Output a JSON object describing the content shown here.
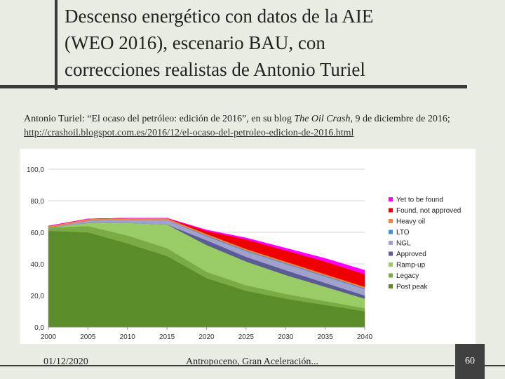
{
  "slide": {
    "title_lines": [
      "Descenso energético con datos de la AIE",
      "(WEO 2016), escenario BAU, con",
      "correcciones realistas de Antonio Turiel"
    ],
    "citation": {
      "author_prefix": "Antonio Turiel: “El ocaso del petróleo: edición de 2016”, en su blog ",
      "blog_name": "The Oil Crash,",
      "date_suffix": " 9 de diciembre de 2016; ",
      "url": "http://crashoil.blogspot.com.es/2016/12/el-ocaso-del-petroleo-edicion-de-2016.html"
    },
    "footer": {
      "date": "01/12/2020",
      "center": "Antropoceno, Gran Aceleración...",
      "page": "60"
    }
  },
  "chart_data": {
    "type": "area",
    "stacked": true,
    "title": "",
    "xlabel": "",
    "ylabel": "",
    "x": [
      2000,
      2005,
      2010,
      2015,
      2020,
      2025,
      2030,
      2035,
      2040
    ],
    "x_ticks": [
      "2000",
      "2005",
      "2010",
      "2015",
      "2020",
      "2025",
      "2030",
      "2035",
      "2040"
    ],
    "y_ticks": [
      "0,0",
      "20,0",
      "40,0",
      "60,0",
      "80,0",
      "100,0"
    ],
    "ylim": [
      0,
      100
    ],
    "legend_position": "right",
    "series": [
      {
        "name": "Post peak",
        "color": "#5b8c2a",
        "values": [
          61,
          60,
          53,
          45,
          31,
          23,
          18,
          14,
          10
        ]
      },
      {
        "name": "Legacy",
        "color": "#7aab45",
        "values": [
          2,
          4,
          5,
          5,
          4,
          3.5,
          3,
          2.5,
          2
        ]
      },
      {
        "name": "Ramp-up",
        "color": "#9acc66",
        "values": [
          0,
          2,
          8,
          15,
          17,
          15,
          12,
          9,
          6
        ]
      },
      {
        "name": "Approved",
        "color": "#5b5c96",
        "values": [
          0,
          0,
          0,
          0,
          3,
          3,
          3,
          2.5,
          2
        ]
      },
      {
        "name": "NGL",
        "color": "#a1a2cc",
        "values": [
          0,
          1.5,
          2,
          3,
          2.5,
          3.5,
          4,
          4,
          4
        ]
      },
      {
        "name": "LTO",
        "color": "#3f90d6",
        "values": [
          0,
          0,
          0,
          0,
          0.5,
          0.5,
          0.5,
          0.5,
          0.5
        ]
      },
      {
        "name": "Heavy oil",
        "color": "#f5813d",
        "values": [
          1,
          1,
          1,
          1,
          1,
          1,
          1,
          1,
          1
        ]
      },
      {
        "name": "Found, not approved",
        "color": "#ee0000",
        "values": [
          0,
          0,
          0,
          0,
          2,
          6,
          7,
          8,
          8
        ]
      },
      {
        "name": "Yet to be found",
        "color": "#ff00ff",
        "values": [
          0,
          0,
          0,
          0,
          0.5,
          1,
          1.5,
          2,
          2.5
        ]
      }
    ],
    "legend_order": [
      "Yet to be found",
      "Found, not approved",
      "Heavy oil",
      "LTO",
      "NGL",
      "Approved",
      "Ramp-up",
      "Legacy",
      "Post peak"
    ]
  }
}
